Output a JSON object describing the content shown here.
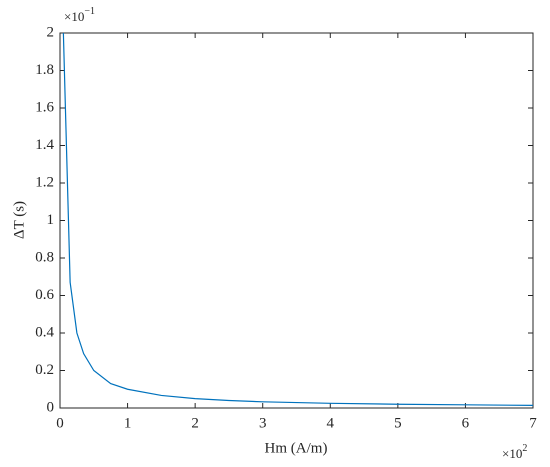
{
  "chart_data": {
    "type": "line",
    "x_label": "Hm (A/m)",
    "y_label": "ΔT (s)",
    "x_multiplier": {
      "base": "×10",
      "exponent": "2"
    },
    "y_multiplier": {
      "base": "×10",
      "exponent": "−1"
    },
    "x": [
      0.05,
      0.15,
      0.25,
      0.35,
      0.5,
      0.75,
      1,
      1.5,
      2,
      2.5,
      3,
      4,
      5,
      6,
      7
    ],
    "series": [
      {
        "name": "ΔT",
        "color": "#0072bd",
        "values": [
          2,
          0.67,
          0.4,
          0.29,
          0.2,
          0.13,
          0.1,
          0.067,
          0.05,
          0.04,
          0.033,
          0.025,
          0.02,
          0.017,
          0.014
        ]
      }
    ],
    "xlim": [
      0,
      7
    ],
    "ylim": [
      0,
      2
    ],
    "xticks": [
      0,
      1,
      2,
      3,
      4,
      5,
      6,
      7
    ],
    "yticks": [
      0,
      0.2,
      0.4,
      0.6,
      0.8,
      1,
      1.2,
      1.4,
      1.6,
      1.8,
      2
    ],
    "grid": false
  }
}
